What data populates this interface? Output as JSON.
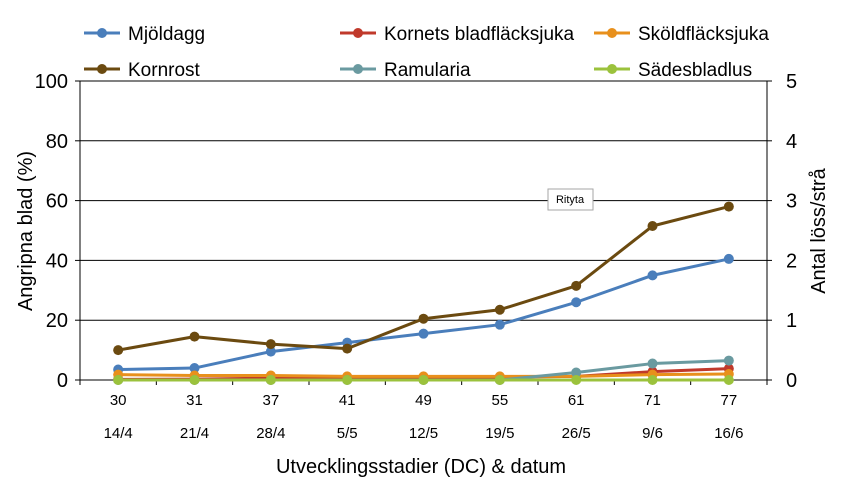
{
  "chart_data": {
    "type": "line",
    "title": "",
    "xlabel": "Utvecklingsstadier (DC) & datum",
    "ylabel": "Angripna blad (%)",
    "y2label": "Antal löss/strå",
    "ylim": [
      0,
      100
    ],
    "y2lim": [
      0,
      5
    ],
    "yticks": [
      "0",
      "20",
      "40",
      "60",
      "80",
      "100"
    ],
    "y2ticks": [
      "0",
      "1",
      "2",
      "3",
      "4",
      "5"
    ],
    "categories": [
      "30",
      "31",
      "37",
      "41",
      "49",
      "55",
      "61",
      "71",
      "77"
    ],
    "dates": [
      "14/4",
      "21/4",
      "28/4",
      "5/5",
      "12/5",
      "19/5",
      "26/5",
      "9/6",
      "16/6"
    ],
    "grid": true,
    "legend_position": "top",
    "series": [
      {
        "name": "Mjöldagg",
        "axis": "left",
        "color": "#4a7ebb",
        "values": [
          3.5,
          4,
          9.5,
          12.5,
          15.5,
          18.5,
          26,
          35,
          40.5
        ]
      },
      {
        "name": "Kornets bladfläcksjuka",
        "axis": "left",
        "color": "#c0392b",
        "values": [
          0.2,
          0.3,
          0.6,
          0.8,
          1,
          1,
          1.2,
          2.8,
          3.8
        ]
      },
      {
        "name": "Sköldfläcksjuka",
        "axis": "left",
        "color": "#e8901c",
        "values": [
          1.8,
          1.5,
          1.5,
          1.2,
          1.2,
          1.2,
          1.2,
          1.8,
          2
        ]
      },
      {
        "name": "Kornrost",
        "axis": "left",
        "color": "#6b4a10",
        "values": [
          10,
          14.5,
          12,
          10.5,
          20.5,
          23.5,
          31.5,
          51.5,
          58
        ]
      },
      {
        "name": "Ramularia",
        "axis": "left",
        "color": "#6a9aa0",
        "values": [
          0,
          0,
          0,
          0,
          0,
          0,
          2.5,
          5.5,
          6.5
        ]
      },
      {
        "name": "Sädesbladlus",
        "axis": "right",
        "color": "#9bc23c",
        "values": [
          0,
          0,
          0,
          0,
          0,
          0,
          0,
          0,
          0
        ]
      }
    ],
    "tooltip": "Rityta"
  }
}
